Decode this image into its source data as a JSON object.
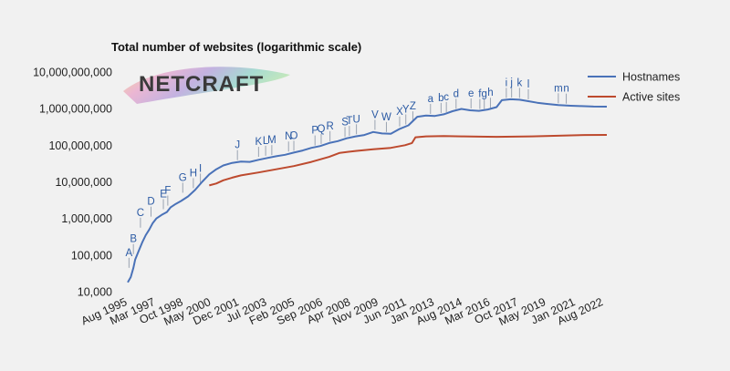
{
  "chart_data": {
    "type": "line",
    "title": "Total number of websites (logarithmic scale)",
    "scale": "log",
    "ylim": [
      10000,
      10000000000
    ],
    "y_ticks": [
      {
        "value": 10000,
        "label": "10,000"
      },
      {
        "value": 100000,
        "label": "100,000"
      },
      {
        "value": 1000000,
        "label": "1,000,000"
      },
      {
        "value": 10000000,
        "label": "10,000,000"
      },
      {
        "value": 100000000,
        "label": "100,000,000"
      },
      {
        "value": 1000000000,
        "label": "1,000,000,000"
      },
      {
        "value": 10000000000,
        "label": "10,000,000,000"
      }
    ],
    "xlim": [
      1995.58,
      2022.75
    ],
    "x_ticks": [
      {
        "value": 1995.58,
        "label": "Aug 1995"
      },
      {
        "value": 1997.17,
        "label": "Mar 1997"
      },
      {
        "value": 1998.75,
        "label": "Oct 1998"
      },
      {
        "value": 2000.33,
        "label": "May 2000"
      },
      {
        "value": 2001.92,
        "label": "Dec 2001"
      },
      {
        "value": 2003.5,
        "label": "Jul 2003"
      },
      {
        "value": 2005.08,
        "label": "Feb 2005"
      },
      {
        "value": 2006.67,
        "label": "Sep 2006"
      },
      {
        "value": 2008.25,
        "label": "Apr 2008"
      },
      {
        "value": 2009.83,
        "label": "Nov 2009"
      },
      {
        "value": 2011.42,
        "label": "Jun 2011"
      },
      {
        "value": 2013.0,
        "label": "Jan 2013"
      },
      {
        "value": 2014.58,
        "label": "Aug 2014"
      },
      {
        "value": 2016.17,
        "label": "Mar 2016"
      },
      {
        "value": 2017.75,
        "label": "Oct 2017"
      },
      {
        "value": 2019.33,
        "label": "May 2019"
      },
      {
        "value": 2021.0,
        "label": "Jan 2021"
      },
      {
        "value": 2022.58,
        "label": "Aug 2022"
      }
    ],
    "legend_position": "right",
    "series": [
      {
        "name": "Hostnames",
        "color": "#4a72b8",
        "points": [
          [
            1995.58,
            18000
          ],
          [
            1995.75,
            25000
          ],
          [
            1995.9,
            45000
          ],
          [
            1996.0,
            75000
          ],
          [
            1996.2,
            130000
          ],
          [
            1996.4,
            220000
          ],
          [
            1996.6,
            350000
          ],
          [
            1996.8,
            500000
          ],
          [
            1997.0,
            750000
          ],
          [
            1997.2,
            1000000
          ],
          [
            1997.5,
            1250000
          ],
          [
            1997.8,
            1500000
          ],
          [
            1998.0,
            2000000
          ],
          [
            1998.3,
            2500000
          ],
          [
            1998.6,
            3000000
          ],
          [
            1999.0,
            4000000
          ],
          [
            1999.4,
            6000000
          ],
          [
            1999.8,
            10000000
          ],
          [
            2000.2,
            16000000
          ],
          [
            2000.6,
            22000000
          ],
          [
            2001.0,
            28000000
          ],
          [
            2001.5,
            33000000
          ],
          [
            2002.0,
            36000000
          ],
          [
            2002.5,
            35000000
          ],
          [
            2003.0,
            40000000
          ],
          [
            2003.5,
            45000000
          ],
          [
            2004.0,
            50000000
          ],
          [
            2004.5,
            55000000
          ],
          [
            2005.0,
            63000000
          ],
          [
            2005.5,
            72000000
          ],
          [
            2006.0,
            85000000
          ],
          [
            2006.5,
            95000000
          ],
          [
            2007.0,
            115000000
          ],
          [
            2007.5,
            130000000
          ],
          [
            2008.0,
            155000000
          ],
          [
            2008.5,
            175000000
          ],
          [
            2009.0,
            190000000
          ],
          [
            2009.5,
            230000000
          ],
          [
            2010.0,
            210000000
          ],
          [
            2010.5,
            205000000
          ],
          [
            2011.0,
            280000000
          ],
          [
            2011.5,
            350000000
          ],
          [
            2012.0,
            600000000
          ],
          [
            2012.5,
            650000000
          ],
          [
            2013.0,
            630000000
          ],
          [
            2013.5,
            700000000
          ],
          [
            2014.0,
            850000000
          ],
          [
            2014.5,
            980000000
          ],
          [
            2015.0,
            900000000
          ],
          [
            2015.5,
            870000000
          ],
          [
            2016.0,
            950000000
          ],
          [
            2016.5,
            1100000000
          ],
          [
            2016.8,
            1700000000
          ],
          [
            2017.3,
            1800000000
          ],
          [
            2017.8,
            1750000000
          ],
          [
            2018.3,
            1600000000
          ],
          [
            2018.8,
            1450000000
          ],
          [
            2019.3,
            1350000000
          ],
          [
            2020.0,
            1250000000
          ],
          [
            2020.7,
            1200000000
          ],
          [
            2021.3,
            1170000000
          ],
          [
            2022.0,
            1140000000
          ],
          [
            2022.75,
            1130000000
          ]
        ]
      },
      {
        "name": "Active sites",
        "color": "#bd4a2e",
        "points": [
          [
            2000.2,
            8000000
          ],
          [
            2000.6,
            9000000
          ],
          [
            2001.0,
            11000000
          ],
          [
            2001.5,
            13000000
          ],
          [
            2002.0,
            15000000
          ],
          [
            2003.0,
            18000000
          ],
          [
            2004.0,
            22000000
          ],
          [
            2005.0,
            27000000
          ],
          [
            2006.0,
            35000000
          ],
          [
            2007.0,
            48000000
          ],
          [
            2007.6,
            62000000
          ],
          [
            2008.5,
            70000000
          ],
          [
            2009.5,
            78000000
          ],
          [
            2010.5,
            85000000
          ],
          [
            2011.3,
            100000000
          ],
          [
            2011.7,
            115000000
          ],
          [
            2011.9,
            165000000
          ],
          [
            2012.5,
            175000000
          ],
          [
            2013.5,
            178000000
          ],
          [
            2014.5,
            175000000
          ],
          [
            2015.5,
            172000000
          ],
          [
            2016.5,
            170000000
          ],
          [
            2017.5,
            172000000
          ],
          [
            2018.5,
            175000000
          ],
          [
            2019.5,
            180000000
          ],
          [
            2020.5,
            185000000
          ],
          [
            2021.5,
            190000000
          ],
          [
            2022.75,
            192000000
          ]
        ]
      }
    ],
    "annotations": [
      {
        "label": "A",
        "x": 1995.65,
        "y": 40000
      },
      {
        "label": "B",
        "x": 1995.9,
        "y": 95000
      },
      {
        "label": "C",
        "x": 1996.3,
        "y": 500000
      },
      {
        "label": "D",
        "x": 1996.9,
        "y": 1000000
      },
      {
        "label": "E",
        "x": 1997.6,
        "y": 1600000
      },
      {
        "label": "F",
        "x": 1997.85,
        "y": 2000000
      },
      {
        "label": "G",
        "x": 1998.7,
        "y": 4500000
      },
      {
        "label": "H",
        "x": 1999.3,
        "y": 6000000
      },
      {
        "label": "I",
        "x": 1999.7,
        "y": 8000000
      },
      {
        "label": "J",
        "x": 2001.8,
        "y": 35000000
      },
      {
        "label": "K",
        "x": 2003.0,
        "y": 43000000
      },
      {
        "label": "L",
        "x": 2003.4,
        "y": 46000000
      },
      {
        "label": "M",
        "x": 2003.75,
        "y": 48000000
      },
      {
        "label": "N",
        "x": 2004.7,
        "y": 60000000
      },
      {
        "label": "O",
        "x": 2005.0,
        "y": 63000000
      },
      {
        "label": "P",
        "x": 2006.2,
        "y": 88000000
      },
      {
        "label": "Q",
        "x": 2006.55,
        "y": 97000000
      },
      {
        "label": "R",
        "x": 2007.05,
        "y": 115000000
      },
      {
        "label": "S",
        "x": 2007.9,
        "y": 150000000
      },
      {
        "label": "T",
        "x": 2008.15,
        "y": 160000000
      },
      {
        "label": "U",
        "x": 2008.55,
        "y": 178000000
      },
      {
        "label": "V",
        "x": 2009.6,
        "y": 235000000
      },
      {
        "label": "W",
        "x": 2010.25,
        "y": 205000000
      },
      {
        "label": "X",
        "x": 2011.0,
        "y": 290000000
      },
      {
        "label": "Y",
        "x": 2011.35,
        "y": 330000000
      },
      {
        "label": "Z",
        "x": 2011.75,
        "y": 400000000
      },
      {
        "label": "a",
        "x": 2012.75,
        "y": 640000000
      },
      {
        "label": "b",
        "x": 2013.35,
        "y": 680000000
      },
      {
        "label": "c",
        "x": 2013.65,
        "y": 720000000
      },
      {
        "label": "d",
        "x": 2014.2,
        "y": 880000000
      },
      {
        "label": "e",
        "x": 2015.05,
        "y": 900000000
      },
      {
        "label": "f",
        "x": 2015.55,
        "y": 875000000
      },
      {
        "label": "g",
        "x": 2015.8,
        "y": 870000000
      },
      {
        "label": "h",
        "x": 2016.15,
        "y": 940000000
      },
      {
        "label": "i",
        "x": 2017.05,
        "y": 1750000000
      },
      {
        "label": "j",
        "x": 2017.35,
        "y": 1800000000
      },
      {
        "label": "k",
        "x": 2017.8,
        "y": 1750000000
      },
      {
        "label": "l",
        "x": 2018.3,
        "y": 1600000000
      },
      {
        "label": "m",
        "x": 2020.0,
        "y": 1250000000
      },
      {
        "label": "n",
        "x": 2020.45,
        "y": 1220000000
      }
    ]
  },
  "logo": {
    "text": "NETCRAFT"
  }
}
